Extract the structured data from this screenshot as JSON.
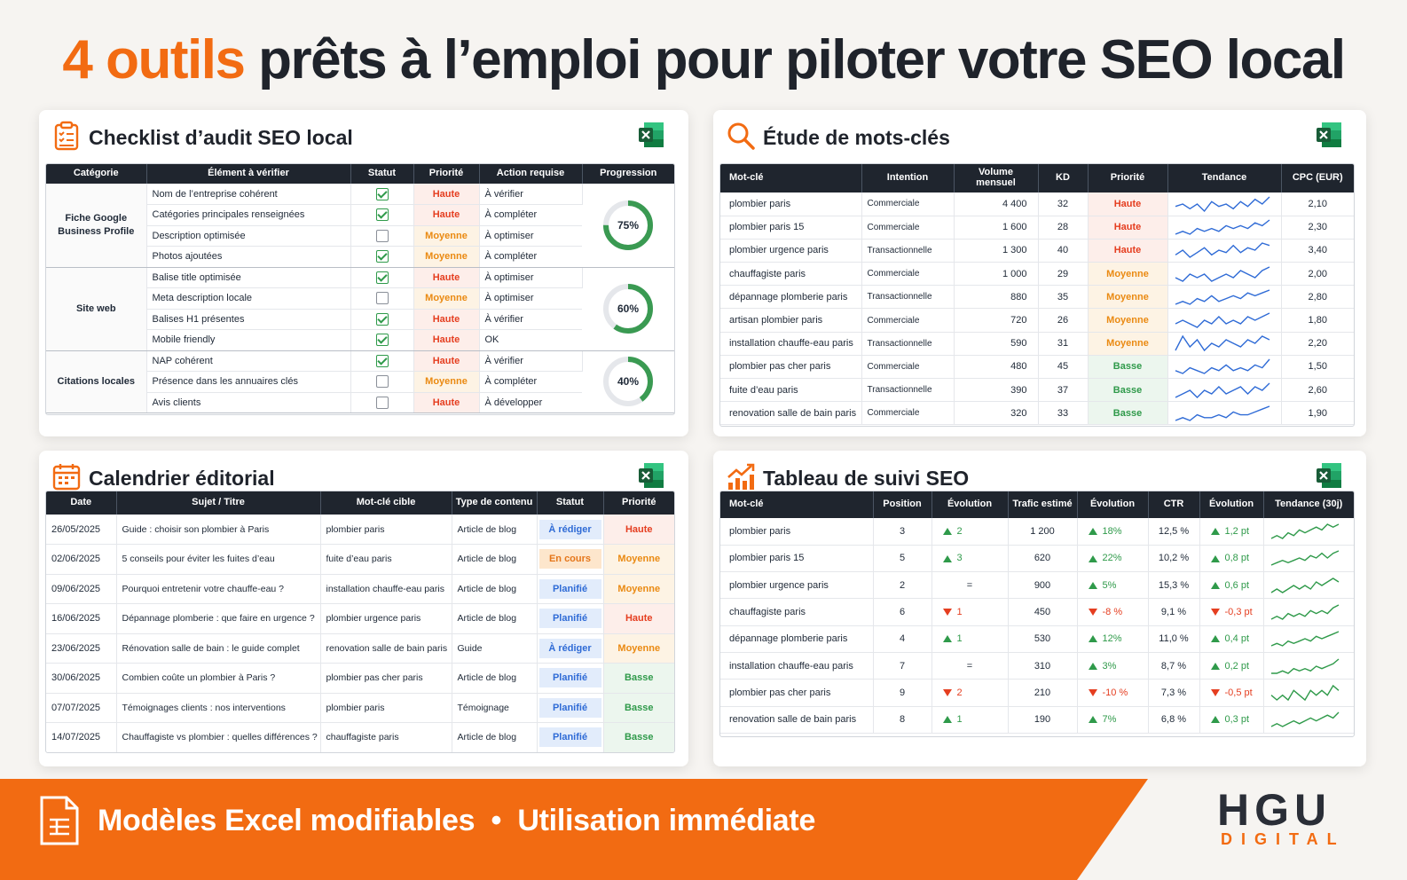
{
  "hero": {
    "accent": "4 outils",
    "rest": " prêts à l’emploi pour piloter votre SEO local"
  },
  "checklist": {
    "title": "Checklist d’audit SEO local",
    "headers": [
      "Catégorie",
      "Élément à vérifier",
      "Statut",
      "Priorité",
      "Action requise",
      "Progression"
    ],
    "groups": [
      {
        "category": "Fiche Google Business Profile",
        "progress": 0.75,
        "progress_label": "75%",
        "rows": [
          {
            "item": "Nom de l’entreprise cohérent",
            "checked": true,
            "priority": "Haute",
            "action": "À vérifier"
          },
          {
            "item": "Catégories principales renseignées",
            "checked": true,
            "priority": "Haute",
            "action": "À compléter"
          },
          {
            "item": "Description optimisée",
            "checked": false,
            "priority": "Moyenne",
            "action": "À optimiser"
          },
          {
            "item": "Photos ajoutées",
            "checked": true,
            "priority": "Moyenne",
            "action": "À compléter"
          }
        ]
      },
      {
        "category": "Site web",
        "progress": 0.6,
        "progress_label": "60%",
        "rows": [
          {
            "item": "Balise title optimisée",
            "checked": true,
            "priority": "Haute",
            "action": "À optimiser"
          },
          {
            "item": "Meta description locale",
            "checked": false,
            "priority": "Moyenne",
            "action": "À optimiser"
          },
          {
            "item": "Balises H1 présentes",
            "checked": true,
            "priority": "Haute",
            "action": "À vérifier"
          },
          {
            "item": "Mobile friendly",
            "checked": true,
            "priority": "Haute",
            "action": "OK"
          }
        ]
      },
      {
        "category": "Citations locales",
        "progress": 0.4,
        "progress_label": "40%",
        "rows": [
          {
            "item": "NAP cohérent",
            "checked": true,
            "priority": "Haute",
            "action": "À vérifier"
          },
          {
            "item": "Présence dans les annuaires clés",
            "checked": false,
            "priority": "Moyenne",
            "action": "À compléter"
          },
          {
            "item": "Avis clients",
            "checked": false,
            "priority": "Haute",
            "action": "À développer"
          }
        ]
      }
    ]
  },
  "keywords": {
    "title": "Étude de mots-clés",
    "headers": [
      "Mot-clé",
      "Intention",
      "Volume mensuel",
      "KD",
      "Priorité",
      "Tendance",
      "CPC (EUR)"
    ],
    "rows": [
      {
        "kw": "plombier paris",
        "intent": "Commerciale",
        "vol": "4 400",
        "kd": "32",
        "prio": "Haute",
        "cpc": "2,10",
        "trend": [
          5,
          6,
          4,
          6,
          3,
          7,
          5,
          6,
          4,
          7,
          5,
          8,
          6,
          9
        ]
      },
      {
        "kw": "plombier paris 15",
        "intent": "Commerciale",
        "vol": "1 600",
        "kd": "28",
        "prio": "Haute",
        "cpc": "2,30",
        "trend": [
          3,
          4,
          3,
          5,
          4,
          5,
          4,
          6,
          5,
          6,
          5,
          7,
          6,
          8
        ]
      },
      {
        "kw": "plombier urgence paris",
        "intent": "Transactionnelle",
        "vol": "1 300",
        "kd": "40",
        "prio": "Haute",
        "cpc": "3,40",
        "trend": [
          4,
          6,
          3,
          5,
          7,
          4,
          6,
          5,
          8,
          5,
          7,
          6,
          9,
          8
        ]
      },
      {
        "kw": "chauffagiste paris",
        "intent": "Commerciale",
        "vol": "1 000",
        "kd": "29",
        "prio": "Moyenne",
        "cpc": "2,00",
        "trend": [
          5,
          4,
          6,
          5,
          6,
          4,
          5,
          6,
          5,
          7,
          6,
          5,
          7,
          8
        ]
      },
      {
        "kw": "dépannage plomberie paris",
        "intent": "Transactionnelle",
        "vol": "880",
        "kd": "35",
        "prio": "Moyenne",
        "cpc": "2,80",
        "trend": [
          4,
          5,
          4,
          6,
          5,
          7,
          5,
          6,
          7,
          6,
          8,
          7,
          8,
          9
        ]
      },
      {
        "kw": "artisan plombier paris",
        "intent": "Commerciale",
        "vol": "720",
        "kd": "26",
        "prio": "Moyenne",
        "cpc": "1,80",
        "trend": [
          5,
          6,
          5,
          4,
          6,
          5,
          7,
          5,
          6,
          5,
          7,
          6,
          7,
          8
        ]
      },
      {
        "kw": "installation chauffe-eau paris",
        "intent": "Transactionnelle",
        "vol": "590",
        "kd": "31",
        "prio": "Moyenne",
        "cpc": "2,20",
        "trend": [
          4,
          8,
          5,
          7,
          4,
          6,
          5,
          7,
          6,
          5,
          7,
          6,
          8,
          7
        ]
      },
      {
        "kw": "plombier pas cher paris",
        "intent": "Commerciale",
        "vol": "480",
        "kd": "45",
        "prio": "Basse",
        "cpc": "1,50",
        "trend": [
          5,
          4,
          6,
          5,
          4,
          6,
          5,
          7,
          5,
          6,
          5,
          7,
          6,
          9
        ]
      },
      {
        "kw": "fuite d’eau paris",
        "intent": "Transactionnelle",
        "vol": "390",
        "kd": "37",
        "prio": "Basse",
        "cpc": "2,60",
        "trend": [
          4,
          5,
          6,
          4,
          6,
          5,
          7,
          5,
          6,
          7,
          5,
          7,
          6,
          8
        ]
      },
      {
        "kw": "renovation salle de bain paris",
        "intent": "Commerciale",
        "vol": "320",
        "kd": "33",
        "prio": "Basse",
        "cpc": "1,90",
        "trend": [
          3,
          4,
          3,
          5,
          4,
          4,
          5,
          4,
          6,
          5,
          5,
          6,
          7,
          8
        ]
      }
    ]
  },
  "calendar": {
    "title": "Calendrier éditorial",
    "headers": [
      "Date",
      "Sujet / Titre",
      "Mot-clé cible",
      "Type de contenu",
      "Statut",
      "Priorité"
    ],
    "rows": [
      {
        "date": "26/05/2025",
        "subject": "Guide : choisir son plombier à Paris",
        "kw": "plombier paris",
        "type": "Article de blog",
        "status": "À rédiger",
        "status_kind": "redi",
        "prio": "Haute"
      },
      {
        "date": "02/06/2025",
        "subject": "5 conseils pour éviter les fuites d’eau",
        "kw": "fuite d’eau paris",
        "type": "Article de blog",
        "status": "En cours",
        "status_kind": "cours",
        "prio": "Moyenne"
      },
      {
        "date": "09/06/2025",
        "subject": "Pourquoi entretenir votre chauffe-eau ?",
        "kw": "installation chauffe-eau paris",
        "type": "Article de blog",
        "status": "Planifié",
        "status_kind": "plan",
        "prio": "Moyenne"
      },
      {
        "date": "16/06/2025",
        "subject": "Dépannage plomberie : que faire en urgence ?",
        "kw": "plombier urgence paris",
        "type": "Article de blog",
        "status": "Planifié",
        "status_kind": "plan",
        "prio": "Haute"
      },
      {
        "date": "23/06/2025",
        "subject": "Rénovation salle de bain : le guide complet",
        "kw": "renovation salle de bain paris",
        "type": "Guide",
        "status": "À rédiger",
        "status_kind": "redi",
        "prio": "Moyenne"
      },
      {
        "date": "30/06/2025",
        "subject": "Combien coûte un plombier à Paris ?",
        "kw": "plombier pas cher paris",
        "type": "Article de blog",
        "status": "Planifié",
        "status_kind": "plan",
        "prio": "Basse"
      },
      {
        "date": "07/07/2025",
        "subject": "Témoignages clients : nos interventions",
        "kw": "plombier paris",
        "type": "Témoignage",
        "status": "Planifié",
        "status_kind": "plan",
        "prio": "Basse"
      },
      {
        "date": "14/07/2025",
        "subject": "Chauffagiste vs plombier : quelles différences ?",
        "kw": "chauffagiste paris",
        "type": "Article de blog",
        "status": "Planifié",
        "status_kind": "plan",
        "prio": "Basse"
      }
    ]
  },
  "tracking": {
    "title": "Tableau de suivi SEO",
    "headers": [
      "Mot-clé",
      "Position",
      "Évolution",
      "Trafic estimé",
      "Évolution",
      "CTR",
      "Évolution",
      "Tendance (30j)"
    ],
    "rows": [
      {
        "kw": "plombier paris",
        "pos": "3",
        "evo": "2",
        "evo_dir": "up",
        "traffic": "1 200",
        "tevo": "18%",
        "tevo_dir": "up",
        "ctr": "12,5 %",
        "cevo": "1,2 pt",
        "cevo_dir": "up",
        "trend": [
          3,
          4,
          3,
          5,
          4,
          6,
          5,
          6,
          7,
          6,
          8,
          7,
          8
        ]
      },
      {
        "kw": "plombier paris 15",
        "pos": "5",
        "evo": "3",
        "evo_dir": "up",
        "traffic": "620",
        "tevo": "22%",
        "tevo_dir": "up",
        "ctr": "10,2 %",
        "cevo": "0,8 pt",
        "cevo_dir": "up",
        "trend": [
          3,
          4,
          5,
          4,
          5,
          6,
          5,
          7,
          6,
          8,
          6,
          8,
          9
        ]
      },
      {
        "kw": "plombier urgence paris",
        "pos": "2",
        "evo": "=",
        "evo_dir": "eq",
        "traffic": "900",
        "tevo": "5%",
        "tevo_dir": "up",
        "ctr": "15,3 %",
        "cevo": "0,6 pt",
        "cevo_dir": "up",
        "trend": [
          4,
          5,
          4,
          5,
          6,
          5,
          6,
          5,
          7,
          6,
          7,
          8,
          7
        ]
      },
      {
        "kw": "chauffagiste paris",
        "pos": "6",
        "evo": "1",
        "evo_dir": "dn",
        "traffic": "450",
        "tevo": "-8 %",
        "tevo_dir": "dn",
        "ctr": "9,1 %",
        "cevo": "-0,3 pt",
        "cevo_dir": "dn",
        "trend": [
          4,
          5,
          4,
          6,
          5,
          6,
          5,
          7,
          6,
          7,
          6,
          8,
          9
        ]
      },
      {
        "kw": "dépannage plomberie paris",
        "pos": "4",
        "evo": "1",
        "evo_dir": "up",
        "traffic": "530",
        "tevo": "12%",
        "tevo_dir": "up",
        "ctr": "11,0 %",
        "cevo": "0,4 pt",
        "cevo_dir": "up",
        "trend": [
          3,
          4,
          3,
          5,
          4,
          5,
          6,
          5,
          7,
          6,
          7,
          8,
          9
        ]
      },
      {
        "kw": "installation chauffe-eau paris",
        "pos": "7",
        "evo": "=",
        "evo_dir": "eq",
        "traffic": "310",
        "tevo": "3%",
        "tevo_dir": "up",
        "ctr": "8,7 %",
        "cevo": "0,2 pt",
        "cevo_dir": "up",
        "trend": [
          3,
          3,
          4,
          3,
          5,
          4,
          5,
          4,
          6,
          5,
          6,
          7,
          9
        ]
      },
      {
        "kw": "plombier pas cher paris",
        "pos": "9",
        "evo": "2",
        "evo_dir": "dn",
        "traffic": "210",
        "tevo": "-10 %",
        "tevo_dir": "dn",
        "ctr": "7,3 %",
        "cevo": "-0,5 pt",
        "cevo_dir": "dn",
        "trend": [
          5,
          4,
          5,
          4,
          6,
          5,
          4,
          6,
          5,
          6,
          5,
          7,
          6
        ]
      },
      {
        "kw": "renovation salle de bain paris",
        "pos": "8",
        "evo": "1",
        "evo_dir": "up",
        "traffic": "190",
        "tevo": "7%",
        "tevo_dir": "up",
        "ctr": "6,8 %",
        "cevo": "0,3 pt",
        "cevo_dir": "up",
        "trend": [
          3,
          4,
          3,
          4,
          5,
          4,
          5,
          6,
          5,
          6,
          7,
          6,
          8
        ]
      }
    ]
  },
  "footer": {
    "text": "Modèles Excel modifiables  •  Utilisation immédiate"
  },
  "logo": {
    "main": "HGU",
    "sub": "DIGITAL"
  },
  "colors": {
    "accent": "#f26b12",
    "dark": "#1f252e",
    "green": "#2f9a4a",
    "red": "#e53e20"
  },
  "icons": {
    "checklist": "clipboard-icon",
    "keywords": "search-icon",
    "calendar": "calendar-icon",
    "tracking": "chart-up-icon",
    "excel": "excel-icon",
    "footer": "document-icon"
  }
}
